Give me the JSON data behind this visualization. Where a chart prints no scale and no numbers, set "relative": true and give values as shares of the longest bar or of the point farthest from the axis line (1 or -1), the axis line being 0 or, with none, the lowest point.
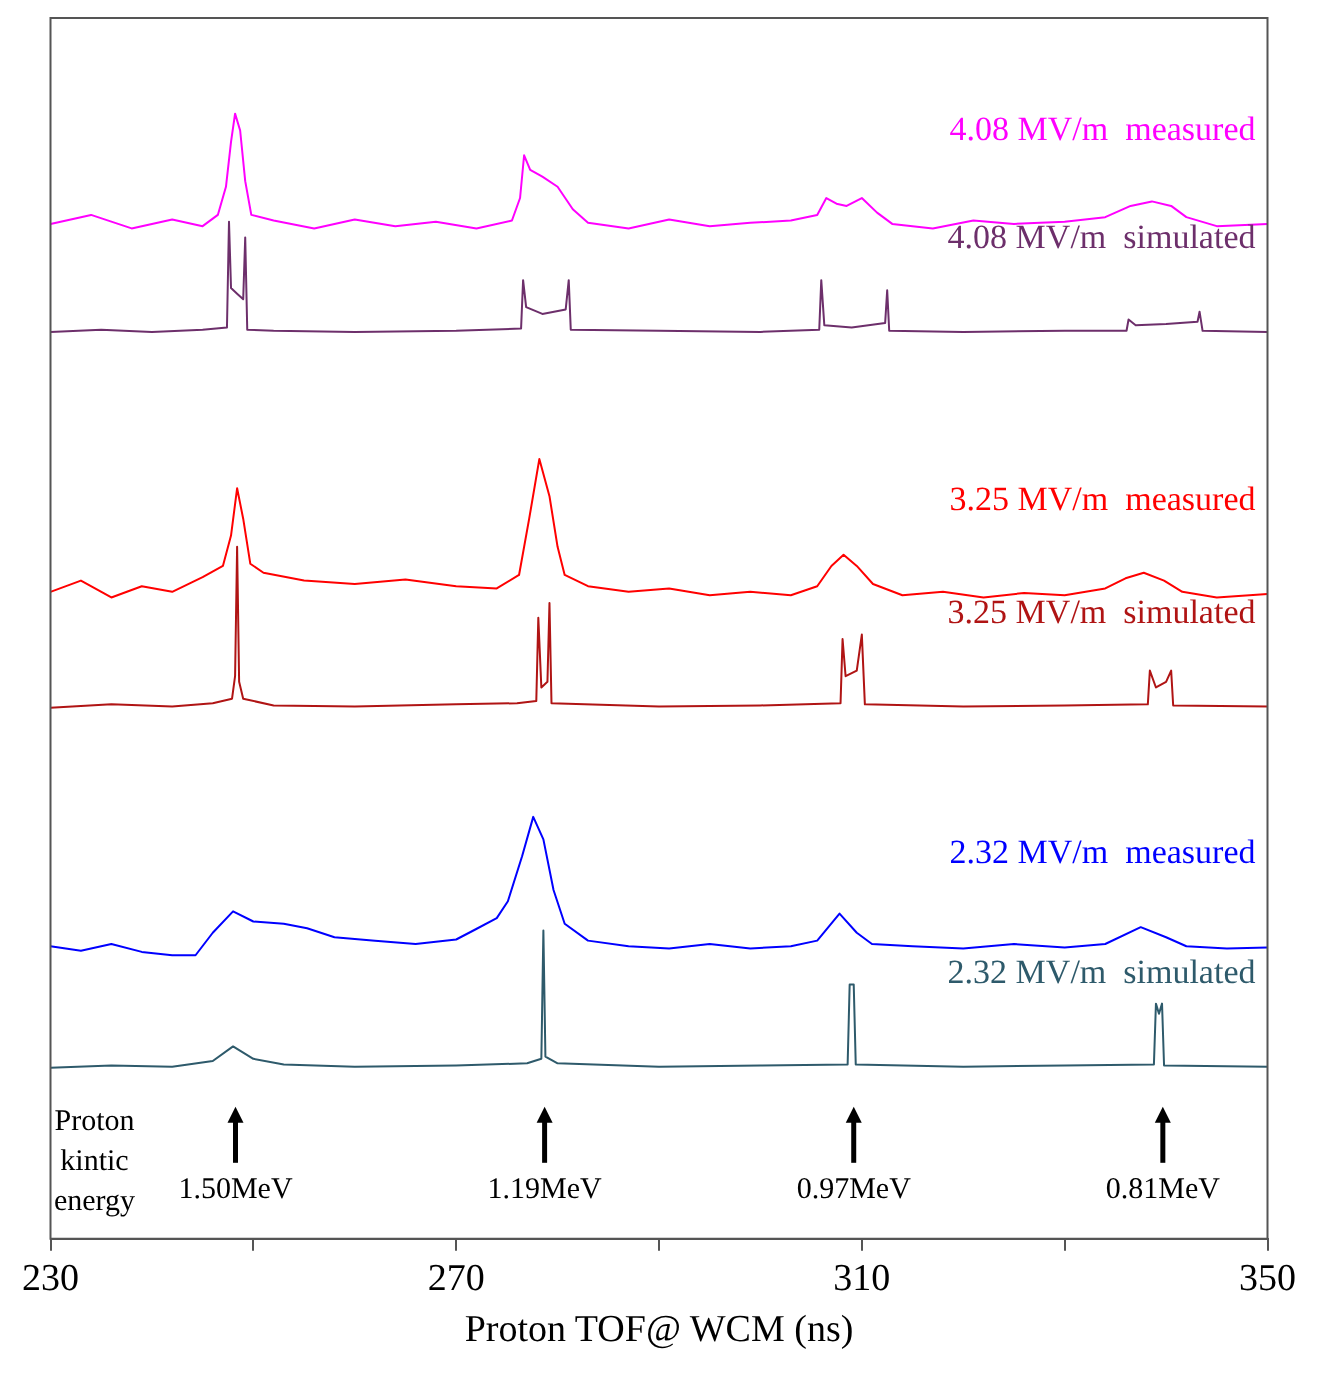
{
  "chart_data": {
    "type": "line",
    "relative": true,
    "xlabel": "Proton TOF@ WCM (ns)",
    "xlim": [
      230,
      350
    ],
    "xticks": [
      230,
      {
        "value": 250,
        "label": null
      },
      270,
      {
        "value": 290,
        "label": null
      },
      310,
      {
        "value": 330,
        "label": null
      },
      350
    ],
    "marker": "none",
    "annotations": [
      "Proton kintic energy",
      "1.50MeV",
      "1.19MeV",
      "0.97MeV",
      "0.81MeV"
    ],
    "series": [
      {
        "name": "4.08 MV/m  measured",
        "color": "#ff00ff",
        "x": [
          230,
          234,
          238,
          242,
          245,
          246.5,
          247.3,
          247.8,
          248.2,
          248.7,
          249.2,
          249.8,
          252,
          256,
          260,
          264,
          268,
          272,
          275.5,
          276.3,
          276.7,
          277.3,
          278.5,
          280,
          281.5,
          283,
          287,
          291,
          295,
          299,
          303,
          305.6,
          306.5,
          307.5,
          308.5,
          310,
          311.5,
          313,
          317,
          321,
          325,
          330,
          334,
          336.5,
          338.6,
          340.5,
          342,
          345,
          350
        ],
        "values": [
          0.902,
          0.91,
          0.898,
          0.906,
          0.9,
          0.91,
          0.935,
          0.975,
          1.0,
          0.985,
          0.94,
          0.91,
          0.905,
          0.898,
          0.906,
          0.9,
          0.904,
          0.898,
          0.905,
          0.925,
          0.963,
          0.95,
          0.944,
          0.935,
          0.915,
          0.903,
          0.898,
          0.906,
          0.9,
          0.903,
          0.905,
          0.91,
          0.925,
          0.92,
          0.918,
          0.925,
          0.912,
          0.902,
          0.898,
          0.905,
          0.902,
          0.904,
          0.908,
          0.918,
          0.922,
          0.918,
          0.908,
          0.9,
          0.902
        ]
      },
      {
        "name": "4.08 MV/m  simulated",
        "color": "#6d2f6b",
        "x": [
          230,
          235,
          240,
          245,
          247.4,
          247.6,
          247.8,
          248.4,
          249,
          249.2,
          249.4,
          252,
          260,
          270,
          276.4,
          276.6,
          276.9,
          278.5,
          280.8,
          281.1,
          281.3,
          290,
          300,
          305.8,
          306,
          306.3,
          309,
          312.3,
          312.5,
          312.7,
          320,
          330,
          336.1,
          336.3,
          337,
          340,
          343.1,
          343.3,
          343.6,
          350
        ],
        "values": [
          0.806,
          0.808,
          0.806,
          0.808,
          0.81,
          0.904,
          0.845,
          0.84,
          0.835,
          0.89,
          0.808,
          0.807,
          0.806,
          0.807,
          0.809,
          0.852,
          0.828,
          0.822,
          0.826,
          0.852,
          0.808,
          0.807,
          0.806,
          0.808,
          0.852,
          0.812,
          0.81,
          0.814,
          0.843,
          0.807,
          0.806,
          0.807,
          0.807,
          0.817,
          0.812,
          0.813,
          0.815,
          0.824,
          0.807,
          0.806
        ]
      },
      {
        "name": "3.25 MV/m  measured",
        "color": "#ff0000",
        "x": [
          230,
          233,
          236,
          239,
          242,
          245,
          247,
          247.8,
          248.4,
          249,
          249.7,
          251,
          255,
          260,
          265,
          270,
          274,
          276.2,
          277.2,
          278.2,
          279.2,
          280,
          280.7,
          283,
          287,
          291,
          295,
          299,
          303,
          305.6,
          307,
          308.2,
          309.5,
          311.1,
          314,
          318,
          322,
          326,
          330,
          334,
          336,
          337.8,
          339.8,
          341.6,
          345,
          350
        ],
        "values": [
          0.575,
          0.585,
          0.57,
          0.58,
          0.575,
          0.588,
          0.598,
          0.625,
          0.667,
          0.64,
          0.6,
          0.592,
          0.585,
          0.582,
          0.586,
          0.58,
          0.578,
          0.59,
          0.64,
          0.693,
          0.66,
          0.615,
          0.59,
          0.58,
          0.575,
          0.578,
          0.572,
          0.575,
          0.572,
          0.58,
          0.598,
          0.608,
          0.598,
          0.582,
          0.572,
          0.575,
          0.57,
          0.574,
          0.572,
          0.578,
          0.587,
          0.592,
          0.585,
          0.575,
          0.57,
          0.573
        ]
      },
      {
        "name": "3.25 MV/m  simulated",
        "color": "#b01414",
        "x": [
          230,
          236,
          242,
          246,
          247.9,
          248.2,
          248.4,
          248.6,
          249,
          252,
          260,
          270,
          276,
          277.9,
          278.1,
          278.4,
          279,
          279.2,
          279.4,
          290,
          300,
          307.9,
          308.1,
          308.4,
          309.5,
          310,
          310.3,
          320,
          330,
          338.2,
          338.4,
          339,
          340,
          340.5,
          340.7,
          350
        ],
        "values": [
          0.472,
          0.475,
          0.473,
          0.476,
          0.48,
          0.5,
          0.615,
          0.495,
          0.48,
          0.474,
          0.473,
          0.475,
          0.476,
          0.478,
          0.552,
          0.49,
          0.495,
          0.565,
          0.476,
          0.473,
          0.474,
          0.476,
          0.533,
          0.5,
          0.505,
          0.537,
          0.475,
          0.473,
          0.474,
          0.475,
          0.505,
          0.49,
          0.495,
          0.505,
          0.474,
          0.473
        ]
      },
      {
        "name": "2.32 MV/m  measured",
        "color": "#0000ff",
        "x": [
          230,
          233,
          236,
          239,
          242,
          244.3,
          246,
          248,
          250,
          253,
          255.3,
          258,
          262,
          266,
          270,
          271.7,
          274,
          275.1,
          276.5,
          277.6,
          278.6,
          279.6,
          280.7,
          283,
          287,
          291,
          295,
          299,
          303,
          305.6,
          307.8,
          309.5,
          311,
          315,
          320,
          325,
          330,
          334,
          337.5,
          340,
          342,
          346,
          350
        ],
        "values": [
          0.26,
          0.256,
          0.262,
          0.255,
          0.252,
          0.252,
          0.272,
          0.291,
          0.282,
          0.28,
          0.276,
          0.268,
          0.265,
          0.262,
          0.266,
          0.274,
          0.285,
          0.3,
          0.34,
          0.375,
          0.355,
          0.31,
          0.28,
          0.265,
          0.26,
          0.258,
          0.262,
          0.258,
          0.26,
          0.265,
          0.289,
          0.272,
          0.262,
          0.26,
          0.258,
          0.262,
          0.259,
          0.262,
          0.277,
          0.268,
          0.26,
          0.258,
          0.259
        ]
      },
      {
        "name": "2.32 MV/m  simulated",
        "color": "#2e5a6b",
        "x": [
          230,
          236,
          242,
          246,
          248,
          250,
          253,
          260,
          270,
          277,
          278.4,
          278.6,
          278.8,
          280,
          290,
          300,
          308.6,
          308.8,
          309.2,
          309.4,
          320,
          330,
          338.8,
          339,
          339.3,
          339.6,
          339.8,
          350
        ],
        "values": [
          0.152,
          0.154,
          0.153,
          0.158,
          0.171,
          0.16,
          0.155,
          0.153,
          0.154,
          0.156,
          0.16,
          0.274,
          0.162,
          0.156,
          0.153,
          0.154,
          0.155,
          0.226,
          0.226,
          0.155,
          0.153,
          0.154,
          0.155,
          0.209,
          0.2,
          0.209,
          0.154,
          0.153
        ]
      }
    ]
  }
}
